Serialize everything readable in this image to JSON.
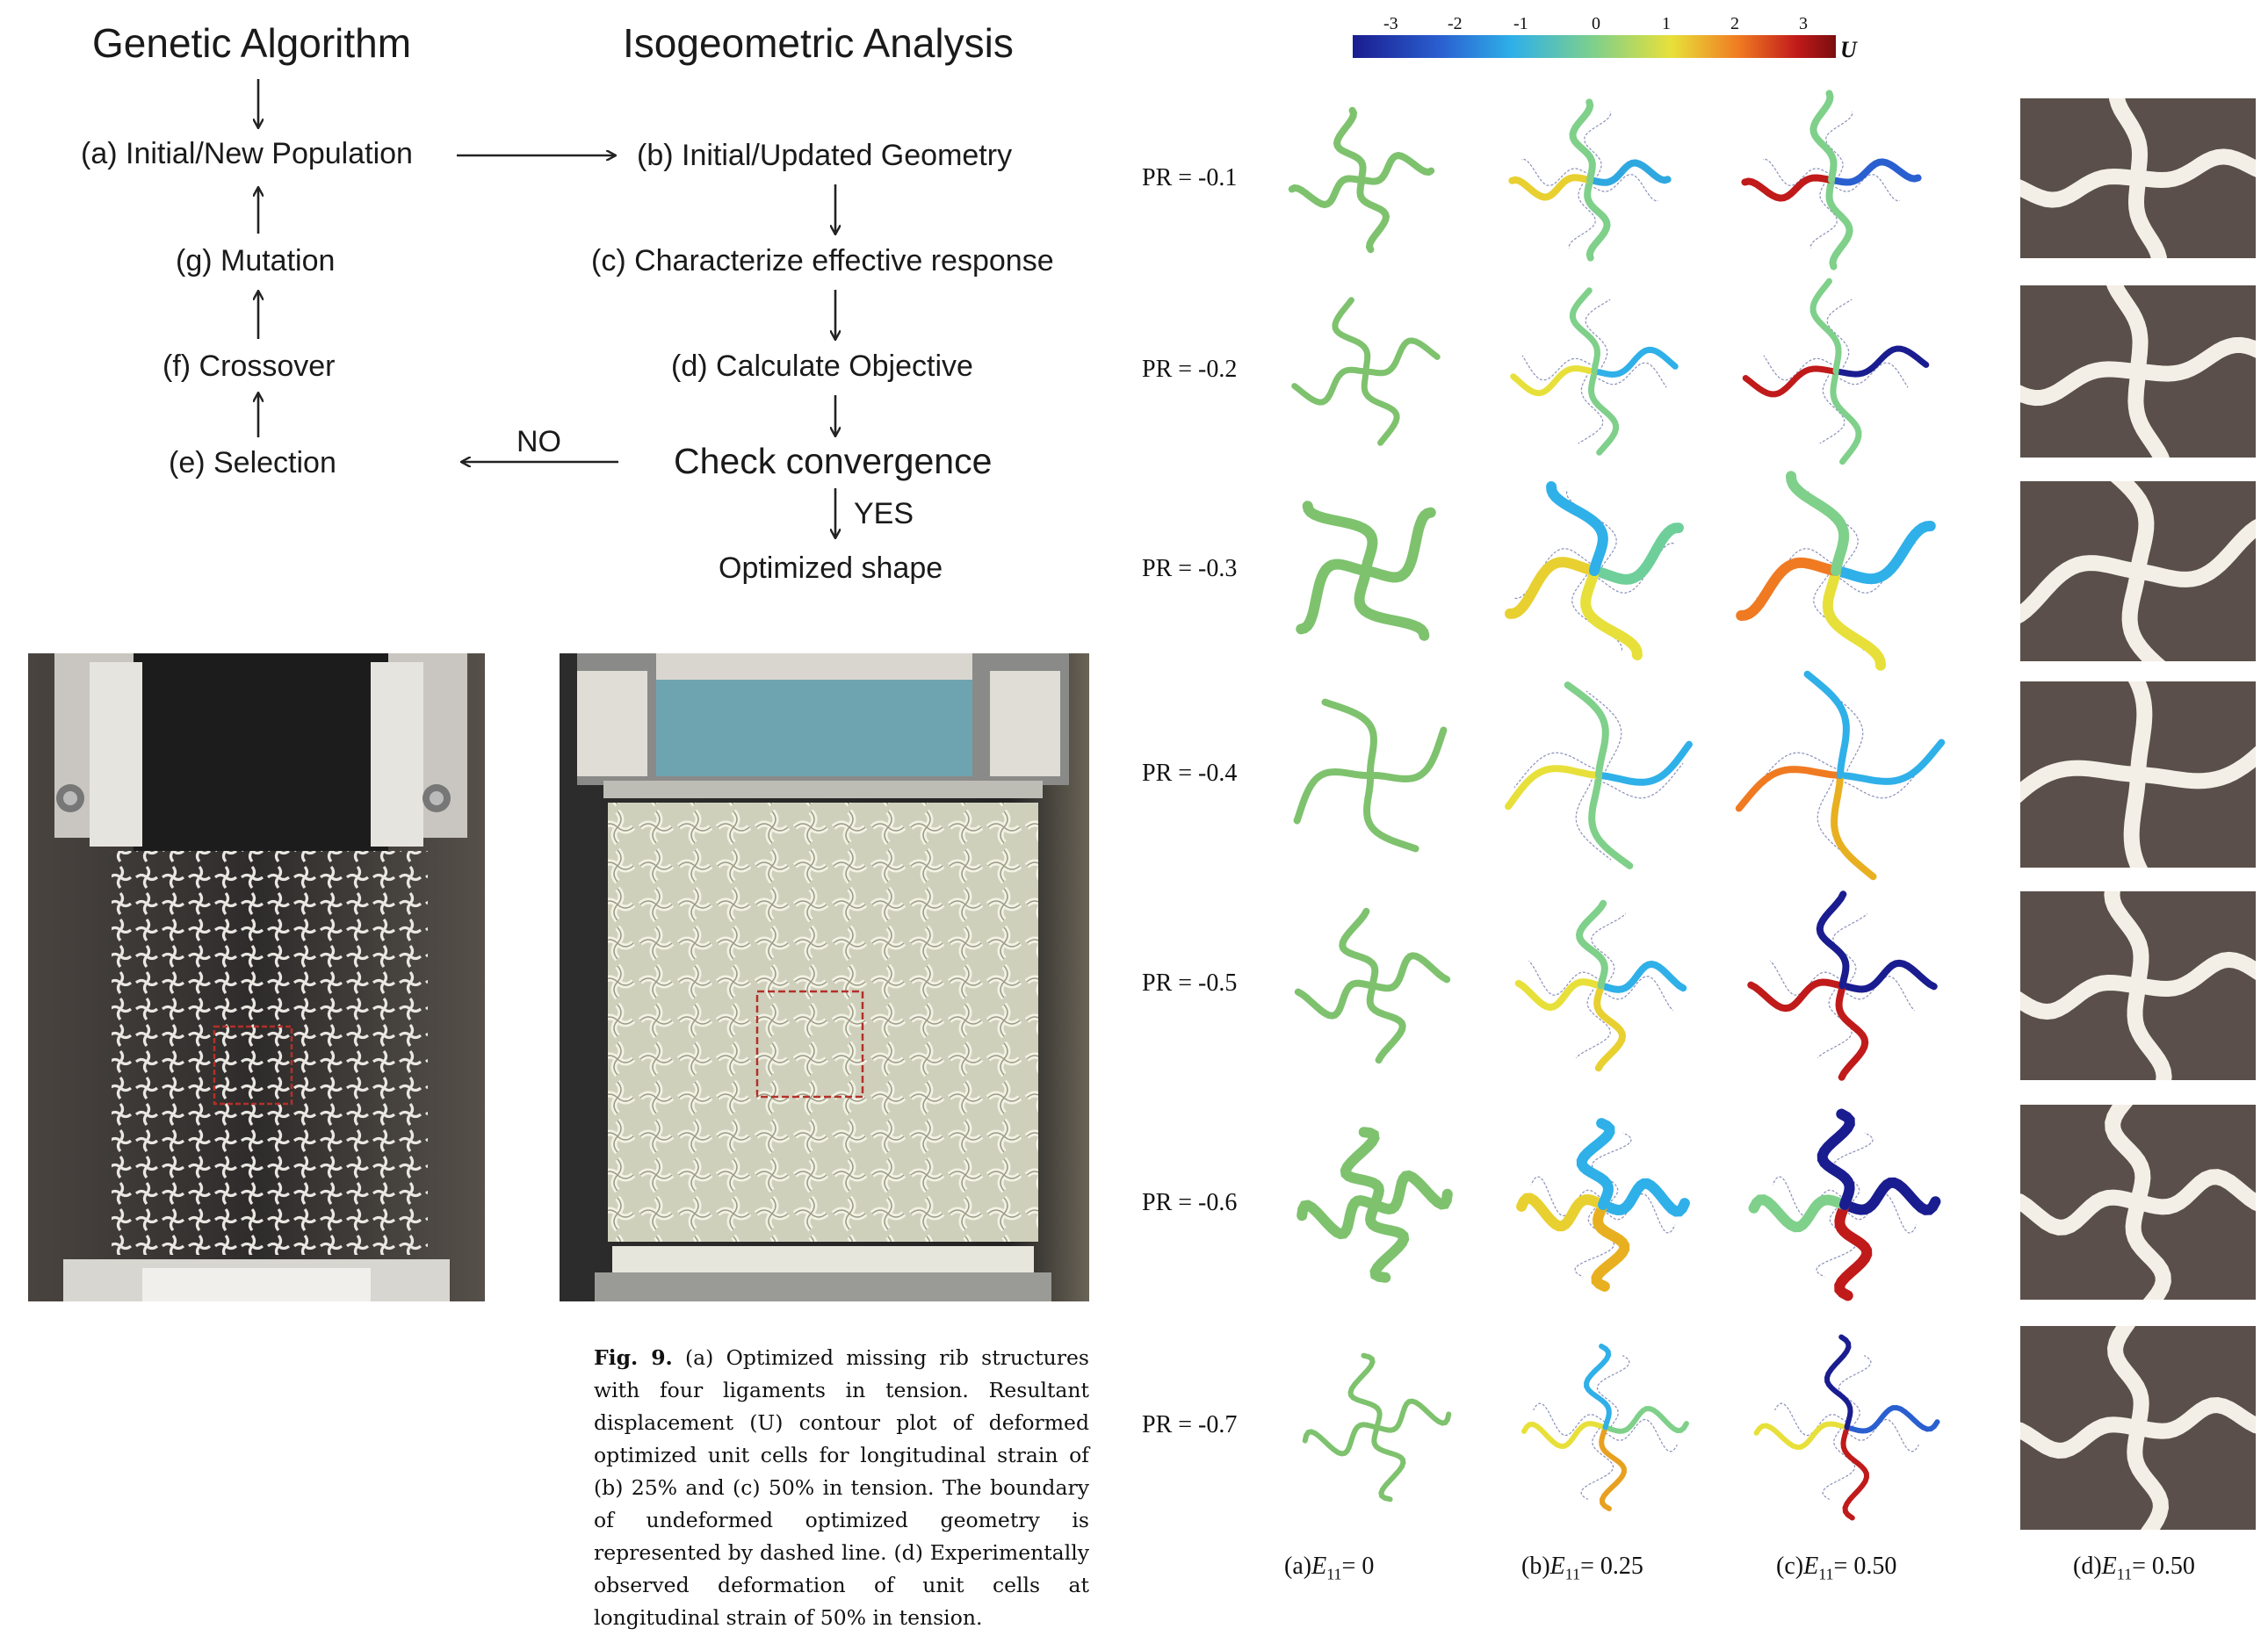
{
  "flowchart": {
    "title_left": "Genetic Algorithm",
    "title_right": "Isogeometric Analysis",
    "step_a": "(a) Initial/New Population",
    "step_b": "(b) Initial/Updated Geometry",
    "step_c": "(c) Characterize effective response",
    "step_d": "(d) Calculate Objective",
    "check": "Check convergence",
    "step_e": "(e) Selection",
    "step_f": "(f) Crossover",
    "step_g": "(g) Mutation",
    "no_label": "NO",
    "yes_label": "YES",
    "result": "Optimized shape"
  },
  "caption": {
    "fig_label": "Fig. 9.",
    "text": "(a) Optimized missing rib structures with four ligaments in tension. Resultant displacement (U) contour plot of deformed optimized unit cells for longitudinal strain of (b) 25% and (c) 50% in tension. The boundary of undeformed optimized geometry is represented by dashed line. (d) Experimentally observed deformation of unit cells at longitudinal strain of 50% in tension."
  },
  "colorbar": {
    "ticks": [
      "-3",
      "-2",
      "-1",
      "0",
      "1",
      "2",
      "3"
    ],
    "label": "U",
    "colors": [
      "#1a1d8f",
      "#2a5fd0",
      "#2fb0e8",
      "#7fd08a",
      "#e8e03a",
      "#f07a22",
      "#c01a1a",
      "#7a0e0e"
    ]
  },
  "figure": {
    "rows": [
      {
        "label": "PR = -0.1"
      },
      {
        "label": "PR = -0.2"
      },
      {
        "label": "PR = -0.3"
      },
      {
        "label": "PR = -0.4"
      },
      {
        "label": "PR = -0.5"
      },
      {
        "label": "PR = -0.6"
      },
      {
        "label": "PR = -0.7"
      }
    ],
    "columns": [
      {
        "prefix": "(a)",
        "sym": "E",
        "sub": "11",
        "value": "= 0"
      },
      {
        "prefix": "(b)",
        "sym": "E",
        "sub": "11",
        "value": "= 0.25"
      },
      {
        "prefix": "(c)",
        "sym": "E",
        "sub": "11",
        "value": "= 0.50"
      },
      {
        "prefix": "(d)",
        "sym": "E",
        "sub": "11",
        "value": "= 0.50"
      }
    ]
  }
}
